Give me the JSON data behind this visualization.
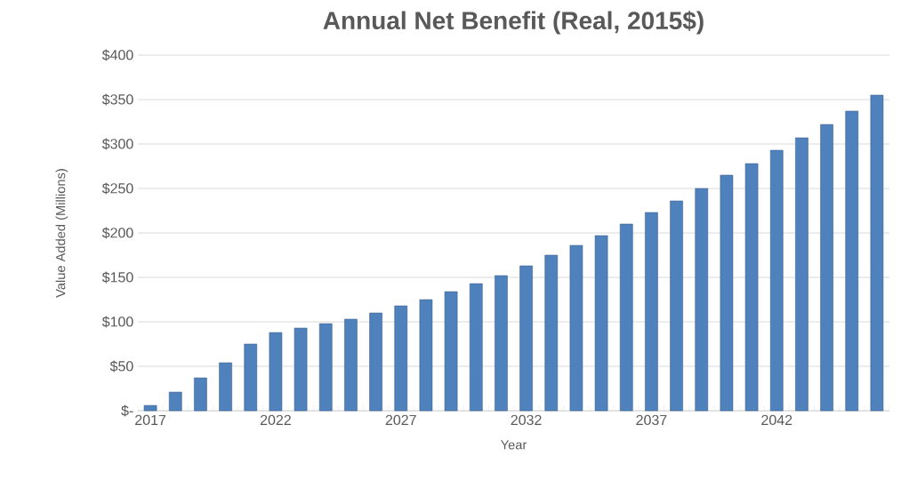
{
  "chart_data": {
    "type": "bar",
    "title": "Annual Net Benefit (Real, 2015$)",
    "xlabel": "Year",
    "ylabel": "Value Added (Millions)",
    "categories": [
      "2017",
      null,
      null,
      null,
      null,
      "2022",
      null,
      null,
      null,
      null,
      "2027",
      null,
      null,
      null,
      null,
      "2032",
      null,
      null,
      null,
      null,
      "2037",
      null,
      null,
      null,
      null,
      "2042",
      null,
      null,
      null,
      null
    ],
    "values": [
      6,
      21,
      37,
      54,
      75,
      88,
      93,
      98,
      103,
      110,
      118,
      125,
      134,
      143,
      152,
      163,
      175,
      186,
      197,
      210,
      223,
      236,
      250,
      265,
      278,
      293,
      307,
      322,
      337,
      355
    ],
    "color": "#4f81bd",
    "ylim": [
      0,
      400
    ],
    "yticks": [
      {
        "value": 0,
        "label": "$-"
      },
      {
        "value": 50,
        "label": "$50"
      },
      {
        "value": 100,
        "label": "$100"
      },
      {
        "value": 150,
        "label": "$150"
      },
      {
        "value": 200,
        "label": "$200"
      },
      {
        "value": 250,
        "label": "$250"
      },
      {
        "value": 300,
        "label": "$300"
      },
      {
        "value": 350,
        "label": "$350"
      },
      {
        "value": 400,
        "label": "$400"
      }
    ],
    "grid": "y"
  }
}
